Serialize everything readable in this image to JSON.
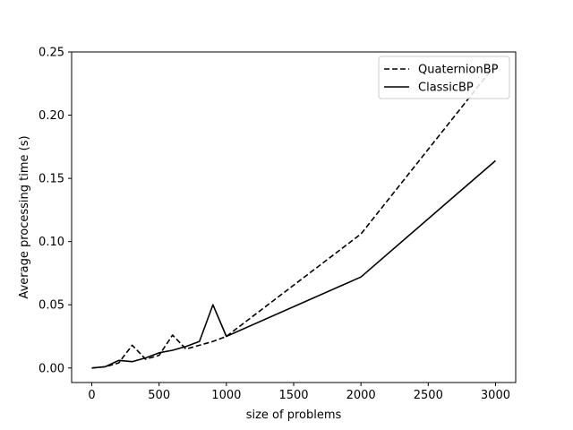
{
  "chart_data": {
    "type": "line",
    "title": "",
    "xlabel": "size of problems",
    "ylabel": "Average processing time (s)",
    "xlim": [
      -150,
      3150
    ],
    "ylim": [
      -0.0115,
      0.25
    ],
    "xticks": [
      0,
      500,
      1000,
      1500,
      2000,
      2500,
      3000
    ],
    "xtick_labels": [
      "0",
      "500",
      "1000",
      "1500",
      "2000",
      "2500",
      "3000"
    ],
    "yticks": [
      0.0,
      0.05,
      0.1,
      0.15,
      0.2,
      0.25
    ],
    "ytick_labels": [
      "0.00",
      "0.05",
      "0.10",
      "0.15",
      "0.20",
      "0.25"
    ],
    "grid": false,
    "legend_position": "top-right",
    "series": [
      {
        "name": "QuaternionBP",
        "style": "dashed",
        "color": "#000000",
        "x": [
          0,
          100,
          200,
          300,
          400,
          500,
          600,
          700,
          800,
          900,
          1000,
          2000,
          3000
        ],
        "y": [
          0.0,
          0.001,
          0.004,
          0.018,
          0.007,
          0.01,
          0.026,
          0.015,
          0.018,
          0.021,
          0.025,
          0.106,
          0.24
        ]
      },
      {
        "name": "ClassicBP",
        "style": "solid",
        "color": "#000000",
        "x": [
          0,
          100,
          200,
          300,
          400,
          500,
          600,
          700,
          800,
          900,
          1000,
          2000,
          3000
        ],
        "y": [
          0.0,
          0.001,
          0.006,
          0.005,
          0.008,
          0.012,
          0.014,
          0.017,
          0.021,
          0.05,
          0.025,
          0.072,
          0.164
        ]
      }
    ]
  }
}
